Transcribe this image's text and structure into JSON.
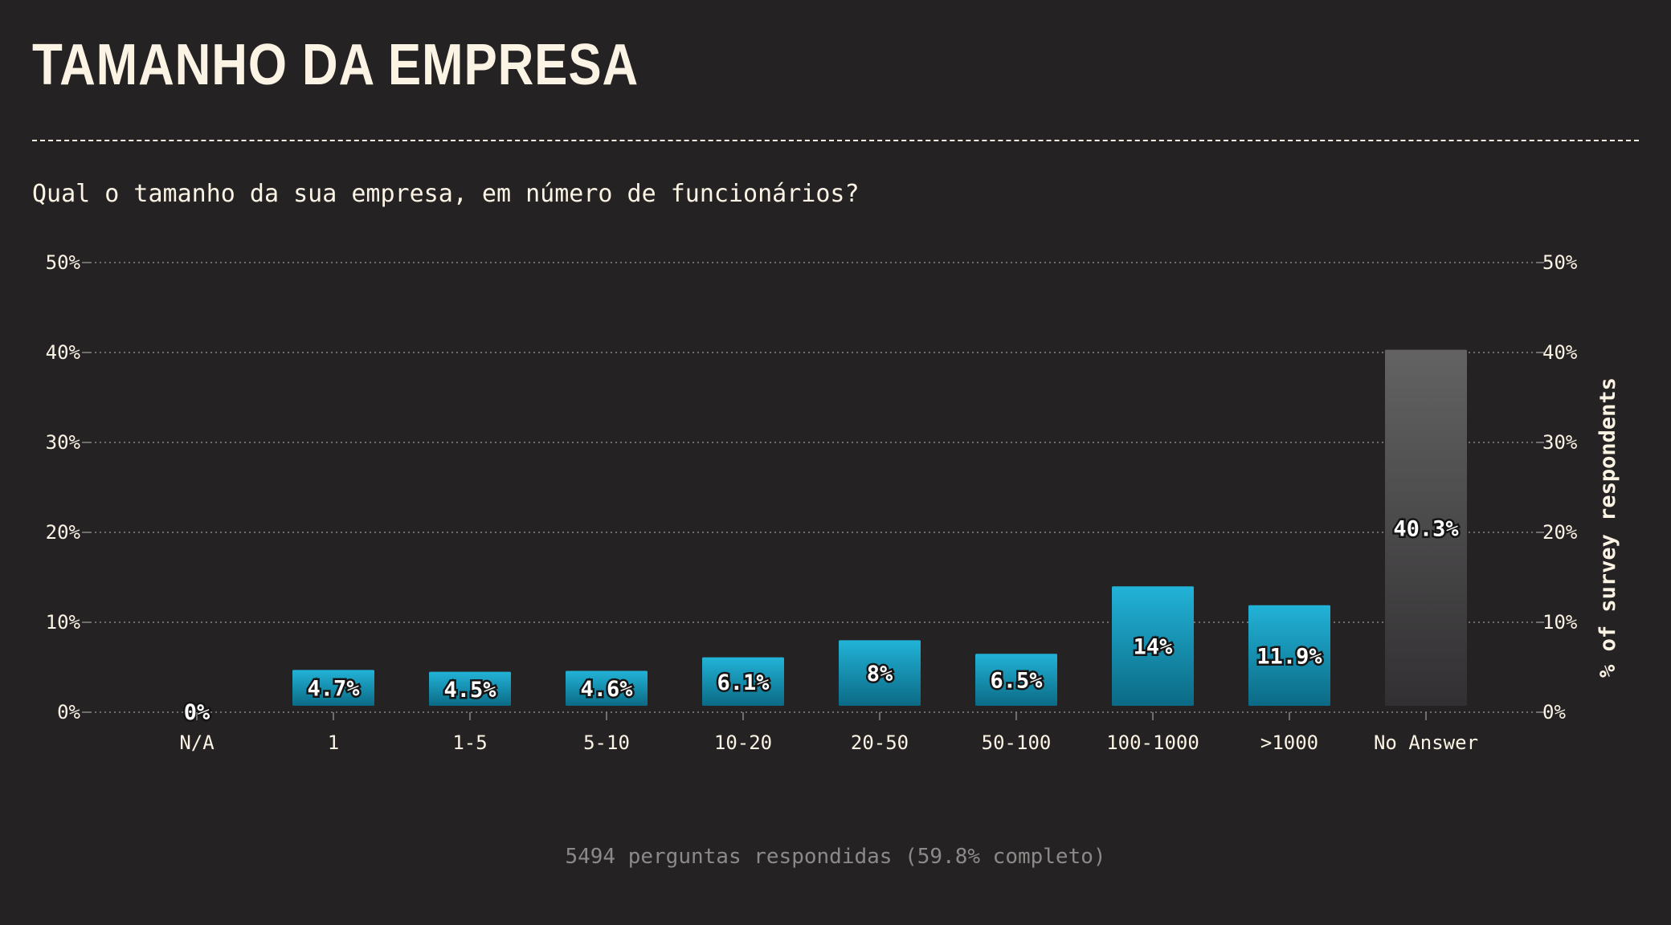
{
  "header": {
    "title": "TAMANHO DA EMPRESA",
    "question": "Qual o tamanho da sua empresa, em número de funcionários?"
  },
  "footer": {
    "summary": "5494 perguntas respondidas (59.8% completo)"
  },
  "colors": {
    "background": "#252223",
    "text": "#fbf3e4",
    "bar_top": "#22b3d8",
    "bar_bottom": "#0b6a85",
    "na_top": "#636363",
    "na_bottom": "#323032",
    "grid": "#8a8784"
  },
  "chart_data": {
    "type": "bar",
    "title": "TAMANHO DA EMPRESA",
    "xlabel": "",
    "ylabel": "% of survey respondents",
    "ylim": [
      0,
      50
    ],
    "yticks": [
      0,
      10,
      20,
      30,
      40,
      50
    ],
    "ytick_labels": [
      "0%",
      "10%",
      "20%",
      "30%",
      "40%",
      "50%"
    ],
    "grid": true,
    "categories": [
      "N/A",
      "1",
      "1-5",
      "5-10",
      "10-20",
      "20-50",
      "50-100",
      "100-1000",
      ">1000",
      "No Answer"
    ],
    "values": [
      0,
      4.7,
      4.5,
      4.6,
      6.1,
      8,
      6.5,
      14,
      11.9,
      40.3
    ],
    "value_labels": [
      "0%",
      "4.7%",
      "4.5%",
      "4.6%",
      "6.1%",
      "8%",
      "6.5%",
      "14%",
      "11.9%",
      "40.3%"
    ],
    "highlight_category": "No Answer"
  }
}
